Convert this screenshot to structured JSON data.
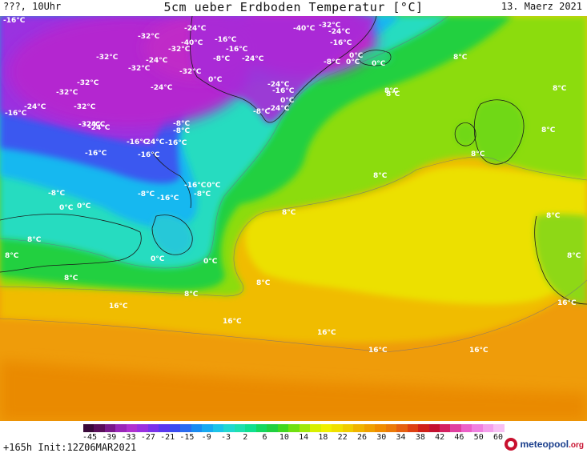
{
  "header": {
    "left": "???, 10Uhr",
    "title": "5cm ueber Erdboden Temperatur [°C]",
    "date": "13. Maerz 2021"
  },
  "footer": {
    "run_info": "+165h  Init:12Z06MAR2021",
    "brand_name": "meteopool",
    "brand_tld": ".org"
  },
  "colorbar": {
    "tick_labels": [
      "-45",
      "-39",
      "-33",
      "-27",
      "-21",
      "-15",
      "-9",
      "-3",
      "2",
      "6",
      "10",
      "14",
      "18",
      "22",
      "26",
      "30",
      "34",
      "38",
      "42",
      "46",
      "50",
      "60"
    ],
    "colors": [
      "#3a0a3a",
      "#5a0f5a",
      "#7a1a8a",
      "#9a28b8",
      "#b032d0",
      "#9a30e0",
      "#7a32ea",
      "#5a38ee",
      "#3a4cf0",
      "#2a6cf0",
      "#1a8cf0",
      "#18aaf0",
      "#1cc4e8",
      "#22d8d0",
      "#1ee0b0",
      "#10e090",
      "#14d860",
      "#20d040",
      "#40d820",
      "#70e010",
      "#a0e80a",
      "#d8f000",
      "#f0f000",
      "#f0e000",
      "#f0cc00",
      "#f0b400",
      "#f0a000",
      "#f08c00",
      "#ec7a08",
      "#e66010",
      "#de4012",
      "#d02018",
      "#c41030",
      "#d42060",
      "#e040a0",
      "#ec60c8",
      "#f080e0",
      "#f4a0ec",
      "#f8c0f4"
    ]
  },
  "map_labels": [
    {
      "text": "-16°C"
    },
    {
      "text": "-32°C"
    },
    {
      "text": "-32°C"
    },
    {
      "text": "-24°C"
    },
    {
      "text": "-24°C"
    },
    {
      "text": "-40°C"
    },
    {
      "text": "-32°C"
    },
    {
      "text": "-16°C"
    },
    {
      "text": "-40°C"
    },
    {
      "text": "-32°C"
    },
    {
      "text": "-24°C"
    },
    {
      "text": "0°C"
    },
    {
      "text": "-32°C"
    },
    {
      "text": "-24°C"
    },
    {
      "text": "-32°C"
    },
    {
      "text": "-24°C"
    },
    {
      "text": "-32°C"
    },
    {
      "text": "-8°C"
    },
    {
      "text": "-16°C"
    },
    {
      "text": "-24°C"
    },
    {
      "text": "-16°C"
    },
    {
      "text": "-8°C"
    },
    {
      "text": "0°C"
    },
    {
      "text": "8°C"
    },
    {
      "text": "-32°C"
    },
    {
      "text": "-24°C"
    },
    {
      "text": "0°C"
    },
    {
      "text": "8°C"
    },
    {
      "text": "-24°C"
    },
    {
      "text": "-16°C"
    },
    {
      "text": "0°C"
    },
    {
      "text": "0°C"
    },
    {
      "text": "-32°C"
    },
    {
      "text": "-16°C"
    },
    {
      "text": "-24°C"
    },
    {
      "text": "-32°C"
    },
    {
      "text": "-24°C"
    },
    {
      "text": "-8°C"
    },
    {
      "text": "8°C"
    },
    {
      "text": "-8°C"
    },
    {
      "text": "-16°C"
    },
    {
      "text": "8°C"
    },
    {
      "text": "-16°C"
    },
    {
      "text": "-24°C"
    },
    {
      "text": "-16°C"
    },
    {
      "text": "-16°C"
    },
    {
      "text": "8°C"
    },
    {
      "text": "8°C"
    },
    {
      "text": "-8°C"
    },
    {
      "text": "-16°C"
    },
    {
      "text": "0°C"
    },
    {
      "text": "-16°C"
    },
    {
      "text": "-8°C"
    },
    {
      "text": "-8°C"
    },
    {
      "text": "0°C"
    },
    {
      "text": "0°C"
    },
    {
      "text": "8°C"
    },
    {
      "text": "8°C"
    },
    {
      "text": "8°C"
    },
    {
      "text": "-8°C"
    },
    {
      "text": "8°C"
    },
    {
      "text": "8°C"
    },
    {
      "text": "0°C"
    },
    {
      "text": "0°C"
    },
    {
      "text": "8°C"
    },
    {
      "text": "8°C"
    },
    {
      "text": "8°C"
    },
    {
      "text": "8°C"
    },
    {
      "text": "16°C"
    },
    {
      "text": "16°C"
    },
    {
      "text": "16°C"
    },
    {
      "text": "16°C"
    },
    {
      "text": "16°C"
    },
    {
      "text": "16°C"
    }
  ]
}
